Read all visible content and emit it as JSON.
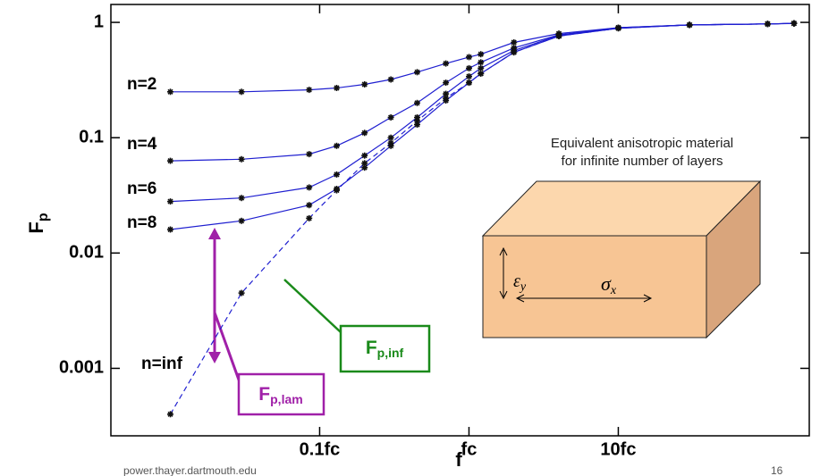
{
  "chart_data": {
    "type": "line",
    "x_label": "f",
    "y_label": {
      "text": "F",
      "sub": "p"
    },
    "xscale": "log",
    "yscale": "log",
    "xlim": [
      0.004,
      190
    ],
    "ylim": [
      0.00026,
      1.43
    ],
    "xticks": [
      {
        "value": 0.1,
        "label": "0.1fc"
      },
      {
        "value": 1,
        "label": "fc"
      },
      {
        "value": 10,
        "label": "10fc"
      }
    ],
    "yticks": [
      0.001,
      0.01,
      0.1,
      1
    ],
    "x": [
      0.01,
      0.03,
      0.085,
      0.13,
      0.2,
      0.3,
      0.45,
      0.7,
      1.0,
      1.2,
      2,
      4,
      10,
      30,
      100,
      150
    ],
    "series": [
      {
        "name": "n=2",
        "color": "#1f1fd0",
        "dashed": false,
        "values": [
          0.25,
          0.25,
          0.26,
          0.27,
          0.29,
          0.32,
          0.37,
          0.44,
          0.5,
          0.53,
          0.67,
          0.8,
          0.9,
          0.95,
          0.97,
          0.98
        ]
      },
      {
        "name": "n=4",
        "color": "#1f1fd0",
        "dashed": false,
        "values": [
          0.063,
          0.065,
          0.072,
          0.085,
          0.11,
          0.15,
          0.2,
          0.3,
          0.4,
          0.45,
          0.6,
          0.78,
          0.9,
          0.95,
          0.97,
          0.98
        ]
      },
      {
        "name": "n=6",
        "color": "#1f1fd0",
        "dashed": false,
        "values": [
          0.028,
          0.03,
          0.037,
          0.048,
          0.07,
          0.1,
          0.15,
          0.24,
          0.34,
          0.4,
          0.57,
          0.77,
          0.89,
          0.95,
          0.97,
          0.98
        ]
      },
      {
        "name": "n=8",
        "color": "#1f1fd0",
        "dashed": false,
        "values": [
          0.016,
          0.019,
          0.026,
          0.036,
          0.055,
          0.085,
          0.13,
          0.21,
          0.3,
          0.36,
          0.55,
          0.76,
          0.89,
          0.95,
          0.97,
          0.98
        ]
      },
      {
        "name": "n=inf",
        "color": "#1f1fd0",
        "dashed": true,
        "values": [
          0.0004,
          0.0045,
          0.02,
          0.035,
          0.06,
          0.09,
          0.14,
          0.22,
          0.3,
          0.36,
          0.55,
          0.76,
          0.89,
          0.95,
          0.97,
          0.98
        ]
      }
    ],
    "inset_caption": [
      "Equivalent anisotropic material",
      "for infinite number of layers"
    ],
    "strain_symbol": {
      "text": "ε",
      "sub": "y"
    },
    "stress_symbol": {
      "text": "σ",
      "sub": "x"
    },
    "annotation_inf": {
      "text": "F",
      "sub": "p,inf",
      "color": "#1a8a1a"
    },
    "annotation_lam": {
      "text": "F",
      "sub": "p,lam",
      "color": "#a020a8"
    },
    "footer_source": "power.thayer.dartmouth.edu",
    "footer_page": "16"
  }
}
